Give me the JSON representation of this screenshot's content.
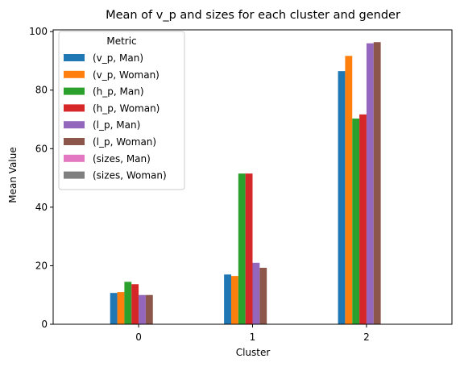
{
  "chart_data": {
    "type": "bar",
    "title": "Mean of v_p and sizes for each cluster and gender",
    "xlabel": "Cluster",
    "ylabel": "Mean Value",
    "categories": [
      "0",
      "1",
      "2"
    ],
    "ylim": [
      0,
      100.6
    ],
    "yticks": [
      0,
      20,
      40,
      60,
      80,
      100
    ],
    "grid": false,
    "legend_title": "Metric",
    "legend_position": "top-left",
    "series": [
      {
        "name": "(v_p, Man)",
        "color": "#1f77b4",
        "values": [
          10.7,
          17.0,
          86.5
        ]
      },
      {
        "name": "(v_p, Woman)",
        "color": "#ff7f0e",
        "values": [
          11.0,
          16.5,
          91.7
        ]
      },
      {
        "name": "(h_p, Man)",
        "color": "#2ca02c",
        "values": [
          14.5,
          51.5,
          70.3
        ]
      },
      {
        "name": "(h_p, Woman)",
        "color": "#d62728",
        "values": [
          13.7,
          51.5,
          71.7
        ]
      },
      {
        "name": "(l_p, Man)",
        "color": "#9467bd",
        "values": [
          10.0,
          21.0,
          96.0
        ]
      },
      {
        "name": "(l_p, Woman)",
        "color": "#8c564b",
        "values": [
          10.0,
          19.3,
          96.4
        ]
      },
      {
        "name": "(sizes, Man)",
        "color": "#e377c2",
        "values": [
          0.1,
          0.1,
          0.1
        ]
      },
      {
        "name": "(sizes, Woman)",
        "color": "#7f7f7f",
        "values": [
          0.1,
          0.1,
          0.1
        ]
      }
    ]
  }
}
